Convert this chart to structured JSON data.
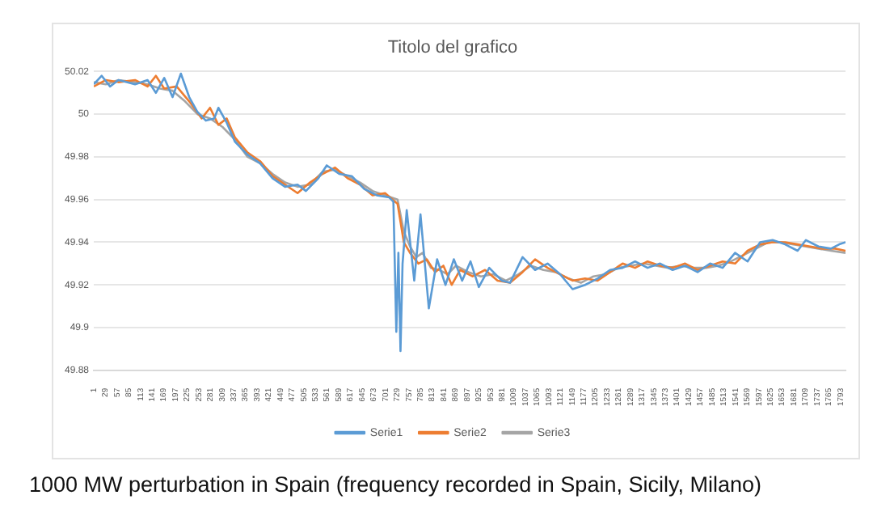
{
  "chart_data": {
    "type": "line",
    "title": "Titolo del grafico",
    "annotations": [
      "1000 MW perturbation in Spain (frequency recorded in Spain, Sicily, Milano)"
    ],
    "xlim": [
      1,
      1805
    ],
    "xticks": [
      1,
      29,
      57,
      85,
      113,
      141,
      169,
      197,
      225,
      253,
      281,
      309,
      337,
      365,
      393,
      421,
      449,
      477,
      505,
      533,
      561,
      589,
      617,
      645,
      673,
      701,
      729,
      757,
      785,
      813,
      841,
      869,
      897,
      925,
      953,
      981,
      1009,
      1037,
      1065,
      1093,
      1121,
      1149,
      1177,
      1205,
      1233,
      1261,
      1289,
      1317,
      1345,
      1373,
      1401,
      1429,
      1457,
      1485,
      1513,
      1541,
      1569,
      1597,
      1625,
      1653,
      1681,
      1709,
      1737,
      1765,
      1793
    ],
    "ylim": [
      49.88,
      50.02
    ],
    "yticks": [
      49.88,
      49.9,
      49.92,
      49.94,
      49.96,
      49.98,
      50,
      50.02
    ],
    "grid": "y",
    "legend": "bottom",
    "marker": "none",
    "line_style": "solid",
    "series": [
      {
        "name": "Serie1",
        "color": "#5b9bd5",
        "x": [
          1,
          20,
          40,
          60,
          80,
          100,
          130,
          150,
          170,
          190,
          210,
          230,
          250,
          270,
          290,
          300,
          320,
          340,
          370,
          400,
          430,
          460,
          490,
          510,
          540,
          560,
          590,
          620,
          650,
          680,
          710,
          720,
          727,
          732,
          737,
          742,
          752,
          770,
          785,
          805,
          825,
          845,
          865,
          885,
          905,
          925,
          950,
          980,
          1000,
          1030,
          1060,
          1090,
          1120,
          1150,
          1180,
          1210,
          1240,
          1270,
          1300,
          1330,
          1360,
          1390,
          1420,
          1450,
          1480,
          1510,
          1540,
          1570,
          1600,
          1630,
          1660,
          1690,
          1710,
          1740,
          1770,
          1790,
          1805
        ],
        "values": [
          50.014,
          50.018,
          50.013,
          50.016,
          50.015,
          50.014,
          50.016,
          50.01,
          50.017,
          50.008,
          50.019,
          50.008,
          50.001,
          49.997,
          49.998,
          50.003,
          49.996,
          49.987,
          49.981,
          49.977,
          49.97,
          49.966,
          49.967,
          49.964,
          49.97,
          49.976,
          49.972,
          49.971,
          49.965,
          49.962,
          49.961,
          49.959,
          49.898,
          49.935,
          49.889,
          49.93,
          49.955,
          49.922,
          49.953,
          49.909,
          49.932,
          49.92,
          49.932,
          49.922,
          49.931,
          49.919,
          49.928,
          49.922,
          49.921,
          49.933,
          49.927,
          49.93,
          49.925,
          49.918,
          49.92,
          49.923,
          49.927,
          49.928,
          49.931,
          49.928,
          49.93,
          49.927,
          49.929,
          49.926,
          49.93,
          49.928,
          49.935,
          49.931,
          49.94,
          49.941,
          49.939,
          49.936,
          49.941,
          49.938,
          49.937,
          49.939,
          49.94
        ]
      },
      {
        "name": "Serie2",
        "color": "#ed7d31",
        "x": [
          1,
          30,
          60,
          100,
          130,
          150,
          170,
          200,
          230,
          260,
          280,
          300,
          320,
          340,
          370,
          400,
          430,
          460,
          490,
          520,
          550,
          580,
          610,
          640,
          670,
          700,
          730,
          745,
          760,
          780,
          800,
          820,
          840,
          860,
          880,
          910,
          940,
          970,
          1000,
          1030,
          1060,
          1090,
          1120,
          1150,
          1180,
          1210,
          1240,
          1270,
          1300,
          1330,
          1360,
          1390,
          1420,
          1450,
          1480,
          1510,
          1540,
          1570,
          1600,
          1630,
          1660,
          1690,
          1720,
          1750,
          1780,
          1805
        ],
        "values": [
          50.013,
          50.016,
          50.015,
          50.016,
          50.013,
          50.018,
          50.012,
          50.013,
          50.006,
          49.998,
          50.003,
          49.995,
          49.998,
          49.989,
          49.982,
          49.978,
          49.971,
          49.967,
          49.963,
          49.968,
          49.972,
          49.975,
          49.97,
          49.967,
          49.962,
          49.963,
          49.958,
          49.94,
          49.935,
          49.93,
          49.932,
          49.926,
          49.929,
          49.92,
          49.927,
          49.924,
          49.927,
          49.922,
          49.921,
          49.926,
          49.932,
          49.928,
          49.925,
          49.922,
          49.923,
          49.922,
          49.926,
          49.93,
          49.928,
          49.931,
          49.929,
          49.928,
          49.93,
          49.927,
          49.929,
          49.931,
          49.93,
          49.936,
          49.939,
          49.94,
          49.94,
          49.939,
          49.938,
          49.937,
          49.937,
          49.936
        ]
      },
      {
        "name": "Serie3",
        "color": "#a5a5a5",
        "x": [
          1,
          30,
          60,
          100,
          130,
          160,
          190,
          220,
          250,
          280,
          310,
          340,
          370,
          400,
          430,
          460,
          490,
          520,
          550,
          580,
          610,
          640,
          670,
          700,
          730,
          745,
          760,
          775,
          790,
          810,
          830,
          850,
          870,
          900,
          930,
          960,
          990,
          1020,
          1050,
          1080,
          1110,
          1140,
          1170,
          1200,
          1230,
          1260,
          1290,
          1320,
          1350,
          1380,
          1410,
          1440,
          1470,
          1500,
          1530,
          1560,
          1590,
          1620,
          1650,
          1680,
          1710,
          1740,
          1770,
          1805
        ],
        "values": [
          50.015,
          50.014,
          50.016,
          50.015,
          50.014,
          50.012,
          50.011,
          50.006,
          50.0,
          49.998,
          49.994,
          49.988,
          49.98,
          49.977,
          49.972,
          49.968,
          49.966,
          49.967,
          49.973,
          49.974,
          49.971,
          49.968,
          49.964,
          49.962,
          49.96,
          49.945,
          49.938,
          49.933,
          49.935,
          49.928,
          49.927,
          49.925,
          49.929,
          49.926,
          49.924,
          49.925,
          49.922,
          49.925,
          49.929,
          49.927,
          49.926,
          49.923,
          49.921,
          49.924,
          49.925,
          49.928,
          49.929,
          49.93,
          49.929,
          49.928,
          49.929,
          49.928,
          49.928,
          49.929,
          49.931,
          49.934,
          49.937,
          49.94,
          49.94,
          49.939,
          49.938,
          49.937,
          49.936,
          49.935
        ]
      }
    ]
  }
}
